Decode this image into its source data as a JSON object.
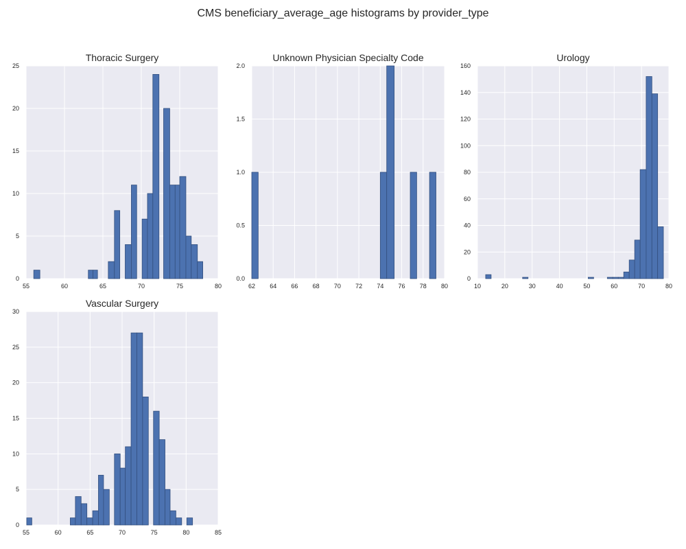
{
  "figure": {
    "title": "CMS beneficiary_average_age histograms by provider_type",
    "colors": {
      "plot_bg": "#eaeaf2",
      "grid": "#ffffff",
      "bar_fill": "#4c72b0",
      "bar_stroke": "#34507f",
      "text": "#262626"
    }
  },
  "chart_data": [
    {
      "type": "bar",
      "title": "Thoracic Surgery",
      "xlim": [
        55,
        80
      ],
      "ylim": [
        0,
        25
      ],
      "xticks": [
        55,
        60,
        65,
        70,
        75,
        80
      ],
      "yticks": [
        0,
        5,
        10,
        15,
        20,
        25
      ],
      "grid": true,
      "bins": [
        {
          "x0": 56.0,
          "x1": 56.8,
          "count": 1
        },
        {
          "x0": 63.1,
          "x1": 63.7,
          "count": 1
        },
        {
          "x0": 63.7,
          "x1": 64.3,
          "count": 1
        },
        {
          "x0": 65.7,
          "x1": 66.5,
          "count": 2
        },
        {
          "x0": 66.5,
          "x1": 67.2,
          "count": 8
        },
        {
          "x0": 67.9,
          "x1": 68.7,
          "count": 4
        },
        {
          "x0": 68.7,
          "x1": 69.4,
          "count": 11
        },
        {
          "x0": 70.1,
          "x1": 70.8,
          "count": 7
        },
        {
          "x0": 70.8,
          "x1": 71.5,
          "count": 10
        },
        {
          "x0": 71.5,
          "x1": 72.3,
          "count": 24
        },
        {
          "x0": 72.9,
          "x1": 73.7,
          "count": 20
        },
        {
          "x0": 73.7,
          "x1": 74.4,
          "count": 11
        },
        {
          "x0": 74.4,
          "x1": 75.0,
          "count": 11
        },
        {
          "x0": 75.0,
          "x1": 75.8,
          "count": 12
        },
        {
          "x0": 75.8,
          "x1": 76.5,
          "count": 5
        },
        {
          "x0": 76.5,
          "x1": 77.3,
          "count": 4
        },
        {
          "x0": 77.3,
          "x1": 78.0,
          "count": 2
        }
      ]
    },
    {
      "type": "bar",
      "title": "Unknown Physician Specialty Code",
      "xlim": [
        62,
        80
      ],
      "ylim": [
        0,
        2.0
      ],
      "xticks": [
        62,
        64,
        66,
        68,
        70,
        72,
        74,
        76,
        78,
        80
      ],
      "yticks": [
        0.0,
        0.5,
        1.0,
        1.5,
        2.0
      ],
      "ytick_format": 1,
      "grid": true,
      "bins": [
        {
          "x0": 62.0,
          "x1": 62.6,
          "count": 1
        },
        {
          "x0": 74.0,
          "x1": 74.6,
          "count": 1
        },
        {
          "x0": 74.6,
          "x1": 75.3,
          "count": 2
        },
        {
          "x0": 76.8,
          "x1": 77.4,
          "count": 1
        },
        {
          "x0": 78.6,
          "x1": 79.2,
          "count": 1
        }
      ]
    },
    {
      "type": "bar",
      "title": "Urology",
      "xlim": [
        10,
        80
      ],
      "ylim": [
        0,
        160
      ],
      "xticks": [
        10,
        20,
        30,
        40,
        50,
        60,
        70,
        80
      ],
      "yticks": [
        0,
        20,
        40,
        60,
        80,
        100,
        120,
        140,
        160
      ],
      "grid": true,
      "bins": [
        {
          "x0": 13.0,
          "x1": 15.0,
          "count": 3
        },
        {
          "x0": 26.5,
          "x1": 28.5,
          "count": 1
        },
        {
          "x0": 50.5,
          "x1": 52.5,
          "count": 1
        },
        {
          "x0": 57.5,
          "x1": 59.5,
          "count": 1
        },
        {
          "x0": 59.5,
          "x1": 61.5,
          "count": 1
        },
        {
          "x0": 61.5,
          "x1": 63.5,
          "count": 1
        },
        {
          "x0": 63.5,
          "x1": 65.5,
          "count": 5
        },
        {
          "x0": 65.5,
          "x1": 67.5,
          "count": 14
        },
        {
          "x0": 67.5,
          "x1": 69.5,
          "count": 29
        },
        {
          "x0": 69.5,
          "x1": 71.7,
          "count": 82
        },
        {
          "x0": 71.7,
          "x1": 73.8,
          "count": 152
        },
        {
          "x0": 73.8,
          "x1": 75.9,
          "count": 139
        },
        {
          "x0": 75.9,
          "x1": 78.0,
          "count": 39
        }
      ]
    },
    {
      "type": "bar",
      "title": "Vascular Surgery",
      "xlim": [
        55,
        85
      ],
      "ylim": [
        0,
        30
      ],
      "xticks": [
        55,
        60,
        65,
        70,
        75,
        80,
        85
      ],
      "yticks": [
        0,
        5,
        10,
        15,
        20,
        25,
        30
      ],
      "grid": true,
      "bins": [
        {
          "x0": 55.1,
          "x1": 55.9,
          "count": 1
        },
        {
          "x0": 61.9,
          "x1": 62.7,
          "count": 1
        },
        {
          "x0": 62.7,
          "x1": 63.6,
          "count": 4
        },
        {
          "x0": 63.6,
          "x1": 64.5,
          "count": 3
        },
        {
          "x0": 64.5,
          "x1": 65.4,
          "count": 1
        },
        {
          "x0": 65.4,
          "x1": 66.3,
          "count": 2
        },
        {
          "x0": 66.3,
          "x1": 67.1,
          "count": 7
        },
        {
          "x0": 67.1,
          "x1": 68.0,
          "count": 5
        },
        {
          "x0": 68.8,
          "x1": 69.7,
          "count": 10
        },
        {
          "x0": 69.7,
          "x1": 70.5,
          "count": 8
        },
        {
          "x0": 70.5,
          "x1": 71.4,
          "count": 11
        },
        {
          "x0": 71.4,
          "x1": 72.3,
          "count": 27
        },
        {
          "x0": 72.3,
          "x1": 73.2,
          "count": 27
        },
        {
          "x0": 73.2,
          "x1": 74.1,
          "count": 18
        },
        {
          "x0": 74.9,
          "x1": 75.8,
          "count": 16
        },
        {
          "x0": 75.8,
          "x1": 76.7,
          "count": 12
        },
        {
          "x0": 76.7,
          "x1": 77.5,
          "count": 5
        },
        {
          "x0": 77.5,
          "x1": 78.4,
          "count": 2
        },
        {
          "x0": 78.4,
          "x1": 79.3,
          "count": 1
        },
        {
          "x0": 80.1,
          "x1": 81.0,
          "count": 1
        }
      ]
    }
  ]
}
